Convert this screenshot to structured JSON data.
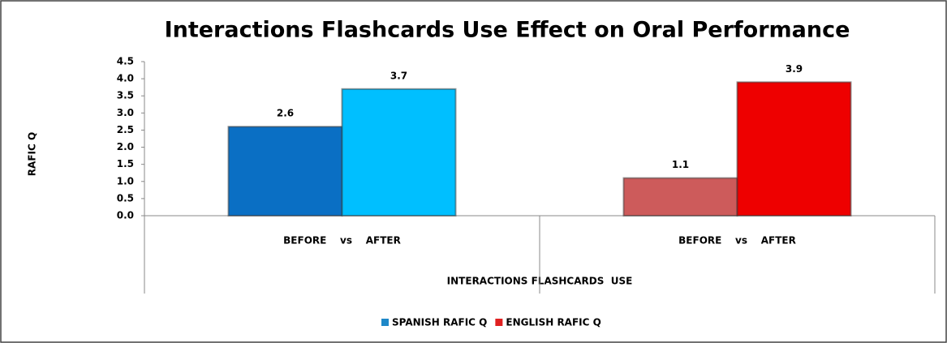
{
  "chart_data": {
    "type": "bar",
    "title": "Interactions Flashcards Use Effect on Oral Performance",
    "y_label": "RAFIC Q",
    "x_label": "INTERACTIONS FLASHCARDS  USE",
    "categories": [
      "BEFORE    vs    AFTER",
      "BEFORE    vs    AFTER"
    ],
    "series": [
      {
        "name": "SPANISH RAFIC Q",
        "color": "#1e88c8",
        "colors": [
          "#0a6fc4",
          "#00bfff"
        ],
        "values": [
          2.6,
          3.7
        ]
      },
      {
        "name": "ENGLISH RAFIC Q",
        "color": "#e02020",
        "colors": [
          "#cd5b5b",
          "#ee0000"
        ],
        "values": [
          1.1,
          3.9
        ]
      }
    ],
    "ylim": [
      0,
      4.5
    ],
    "yticks": [
      {
        "value": 0,
        "label": "0.0"
      },
      0.5,
      {
        "value": 1,
        "label": "1.0"
      },
      1.5,
      {
        "value": 2,
        "label": "2.0"
      },
      2.5,
      {
        "value": 3,
        "label": "3.0"
      },
      3.5,
      {
        "value": 4,
        "label": "4.0"
      },
      4.5
    ],
    "legend": "bottom"
  }
}
